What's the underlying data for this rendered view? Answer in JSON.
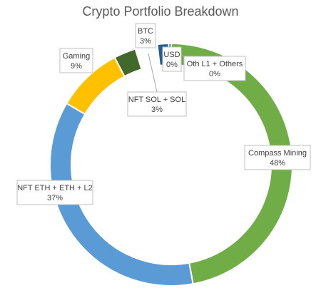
{
  "chart_data": {
    "type": "pie",
    "title": "Crypto Portfolio Breakdown",
    "series": [
      {
        "name": "Compass Mining",
        "value": 48,
        "label": "48%",
        "color": "#70ad47"
      },
      {
        "name": "NFT ETH + ETH + L2",
        "value": 37,
        "label": "37%",
        "color": "#5b9bd5"
      },
      {
        "name": "Gaming",
        "value": 9,
        "label": "9%",
        "color": "#ffc000"
      },
      {
        "name": "NFT SOL + SOL",
        "value": 3,
        "label": "3%",
        "color": "#43682b"
      },
      {
        "name": "BTC",
        "value": 3,
        "label": "3%",
        "color": "#ffffff"
      },
      {
        "name": "USD",
        "value": 0.4,
        "label": "0%",
        "color": "#255e91"
      },
      {
        "name": "Oth L1 + Others",
        "value": 0,
        "label": "0%",
        "color": "#264478"
      }
    ]
  }
}
